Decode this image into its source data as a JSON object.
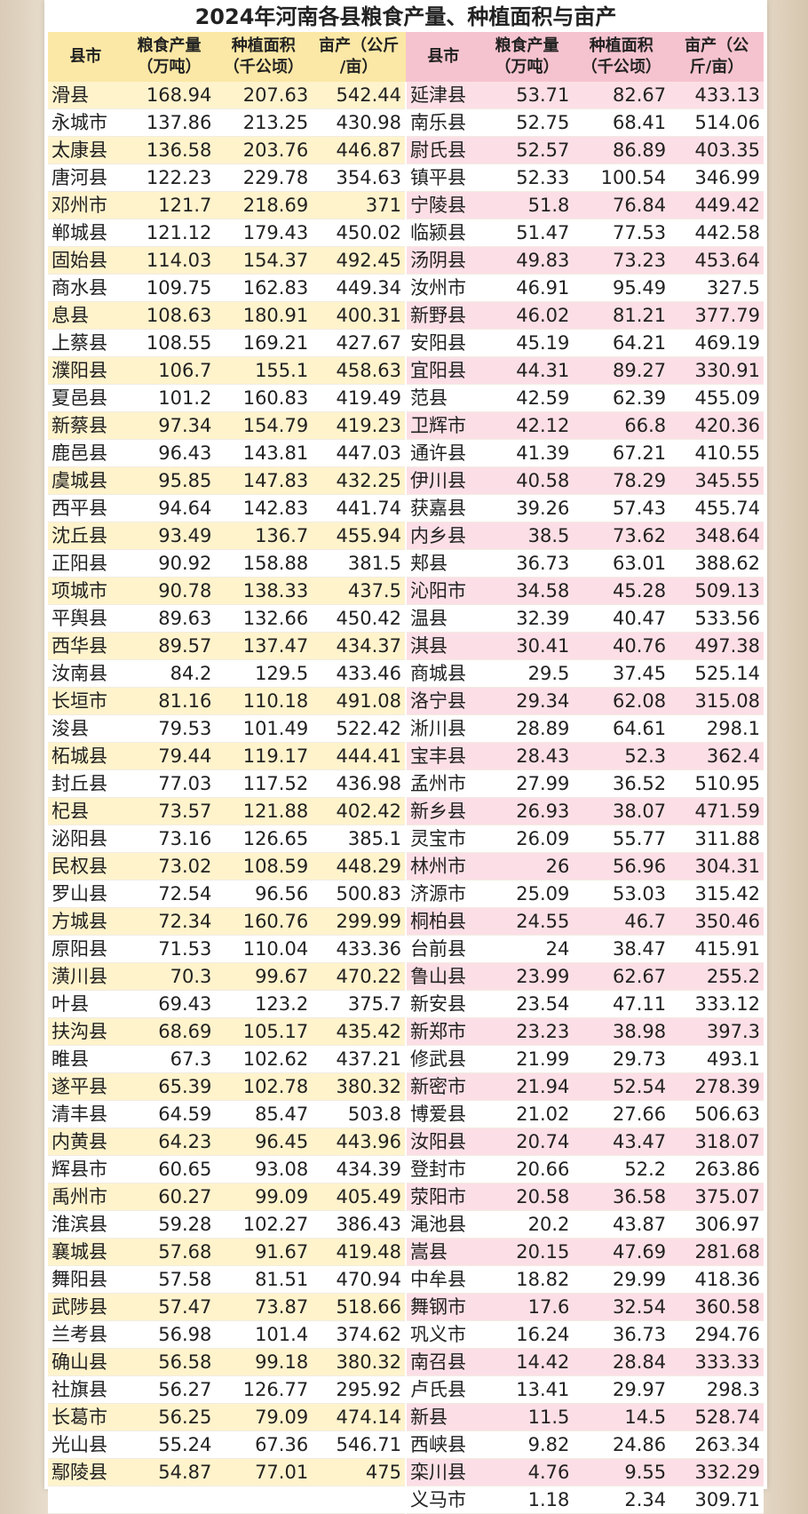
{
  "title": "2024年河南各县粮食产量、种植面积与亩产",
  "headers": {
    "county": "县市",
    "production_l1": "粮食产量",
    "production_l2": "（万吨）",
    "area_l1": "种植面积",
    "area_l2": "（千公顷）",
    "left_yield_l1": "亩产（公斤",
    "left_yield_l2": "/亩）",
    "right_yield_l1": "亩产（公",
    "right_yield_l2": "斤/亩）"
  },
  "rows": [
    {
      "l": [
        "滑县",
        "168.94",
        "207.63",
        "542.44"
      ],
      "r": [
        "延津县",
        "53.71",
        "82.67",
        "433.13"
      ]
    },
    {
      "l": [
        "永城市",
        "137.86",
        "213.25",
        "430.98"
      ],
      "r": [
        "南乐县",
        "52.75",
        "68.41",
        "514.06"
      ]
    },
    {
      "l": [
        "太康县",
        "136.58",
        "203.76",
        "446.87"
      ],
      "r": [
        "尉氏县",
        "52.57",
        "86.89",
        "403.35"
      ]
    },
    {
      "l": [
        "唐河县",
        "122.23",
        "229.78",
        "354.63"
      ],
      "r": [
        "镇平县",
        "52.33",
        "100.54",
        "346.99"
      ]
    },
    {
      "l": [
        "邓州市",
        "121.7",
        "218.69",
        "371"
      ],
      "r": [
        "宁陵县",
        "51.8",
        "76.84",
        "449.42"
      ]
    },
    {
      "l": [
        "郸城县",
        "121.12",
        "179.43",
        "450.02"
      ],
      "r": [
        "临颍县",
        "51.47",
        "77.53",
        "442.58"
      ]
    },
    {
      "l": [
        "固始县",
        "114.03",
        "154.37",
        "492.45"
      ],
      "r": [
        "汤阴县",
        "49.83",
        "73.23",
        "453.64"
      ]
    },
    {
      "l": [
        "商水县",
        "109.75",
        "162.83",
        "449.34"
      ],
      "r": [
        "汝州市",
        "46.91",
        "95.49",
        "327.5"
      ]
    },
    {
      "l": [
        "息县",
        "108.63",
        "180.91",
        "400.31"
      ],
      "r": [
        "新野县",
        "46.02",
        "81.21",
        "377.79"
      ]
    },
    {
      "l": [
        "上蔡县",
        "108.55",
        "169.21",
        "427.67"
      ],
      "r": [
        "安阳县",
        "45.19",
        "64.21",
        "469.19"
      ]
    },
    {
      "l": [
        "濮阳县",
        "106.7",
        "155.1",
        "458.63"
      ],
      "r": [
        "宜阳县",
        "44.31",
        "89.27",
        "330.91"
      ]
    },
    {
      "l": [
        "夏邑县",
        "101.2",
        "160.83",
        "419.49"
      ],
      "r": [
        "范县",
        "42.59",
        "62.39",
        "455.09"
      ]
    },
    {
      "l": [
        "新蔡县",
        "97.34",
        "154.79",
        "419.23"
      ],
      "r": [
        "卫辉市",
        "42.12",
        "66.8",
        "420.36"
      ]
    },
    {
      "l": [
        "鹿邑县",
        "96.43",
        "143.81",
        "447.03"
      ],
      "r": [
        "通许县",
        "41.39",
        "67.21",
        "410.55"
      ]
    },
    {
      "l": [
        "虞城县",
        "95.85",
        "147.83",
        "432.25"
      ],
      "r": [
        "伊川县",
        "40.58",
        "78.29",
        "345.55"
      ]
    },
    {
      "l": [
        "西平县",
        "94.64",
        "142.83",
        "441.74"
      ],
      "r": [
        "获嘉县",
        "39.26",
        "57.43",
        "455.74"
      ]
    },
    {
      "l": [
        "沈丘县",
        "93.49",
        "136.7",
        "455.94"
      ],
      "r": [
        "内乡县",
        "38.5",
        "73.62",
        "348.64"
      ]
    },
    {
      "l": [
        "正阳县",
        "90.92",
        "158.88",
        "381.5"
      ],
      "r": [
        "郏县",
        "36.73",
        "63.01",
        "388.62"
      ]
    },
    {
      "l": [
        "项城市",
        "90.78",
        "138.33",
        "437.5"
      ],
      "r": [
        "沁阳市",
        "34.58",
        "45.28",
        "509.13"
      ]
    },
    {
      "l": [
        "平舆县",
        "89.63",
        "132.66",
        "450.42"
      ],
      "r": [
        "温县",
        "32.39",
        "40.47",
        "533.56"
      ]
    },
    {
      "l": [
        "西华县",
        "89.57",
        "137.47",
        "434.37"
      ],
      "r": [
        "淇县",
        "30.41",
        "40.76",
        "497.38"
      ]
    },
    {
      "l": [
        "汝南县",
        "84.2",
        "129.5",
        "433.46"
      ],
      "r": [
        "商城县",
        "29.5",
        "37.45",
        "525.14"
      ]
    },
    {
      "l": [
        "长垣市",
        "81.16",
        "110.18",
        "491.08"
      ],
      "r": [
        "洛宁县",
        "29.34",
        "62.08",
        "315.08"
      ]
    },
    {
      "l": [
        "浚县",
        "79.53",
        "101.49",
        "522.42"
      ],
      "r": [
        "淅川县",
        "28.89",
        "64.61",
        "298.1"
      ]
    },
    {
      "l": [
        "柘城县",
        "79.44",
        "119.17",
        "444.41"
      ],
      "r": [
        "宝丰县",
        "28.43",
        "52.3",
        "362.4"
      ]
    },
    {
      "l": [
        "封丘县",
        "77.03",
        "117.52",
        "436.98"
      ],
      "r": [
        "孟州市",
        "27.99",
        "36.52",
        "510.95"
      ]
    },
    {
      "l": [
        "杞县",
        "73.57",
        "121.88",
        "402.42"
      ],
      "r": [
        "新乡县",
        "26.93",
        "38.07",
        "471.59"
      ]
    },
    {
      "l": [
        "泌阳县",
        "73.16",
        "126.65",
        "385.1"
      ],
      "r": [
        "灵宝市",
        "26.09",
        "55.77",
        "311.88"
      ]
    },
    {
      "l": [
        "民权县",
        "73.02",
        "108.59",
        "448.29"
      ],
      "r": [
        "林州市",
        "26",
        "56.96",
        "304.31"
      ]
    },
    {
      "l": [
        "罗山县",
        "72.54",
        "96.56",
        "500.83"
      ],
      "r": [
        "济源市",
        "25.09",
        "53.03",
        "315.42"
      ]
    },
    {
      "l": [
        "方城县",
        "72.34",
        "160.76",
        "299.99"
      ],
      "r": [
        "桐柏县",
        "24.55",
        "46.7",
        "350.46"
      ]
    },
    {
      "l": [
        "原阳县",
        "71.53",
        "110.04",
        "433.36"
      ],
      "r": [
        "台前县",
        "24",
        "38.47",
        "415.91"
      ]
    },
    {
      "l": [
        "潢川县",
        "70.3",
        "99.67",
        "470.22"
      ],
      "r": [
        "鲁山县",
        "23.99",
        "62.67",
        "255.2"
      ]
    },
    {
      "l": [
        "叶县",
        "69.43",
        "123.2",
        "375.7"
      ],
      "r": [
        "新安县",
        "23.54",
        "47.11",
        "333.12"
      ]
    },
    {
      "l": [
        "扶沟县",
        "68.69",
        "105.17",
        "435.42"
      ],
      "r": [
        "新郑市",
        "23.23",
        "38.98",
        "397.3"
      ]
    },
    {
      "l": [
        "睢县",
        "67.3",
        "102.62",
        "437.21"
      ],
      "r": [
        "修武县",
        "21.99",
        "29.73",
        "493.1"
      ]
    },
    {
      "l": [
        "遂平县",
        "65.39",
        "102.78",
        "380.32"
      ],
      "r": [
        "新密市",
        "21.94",
        "52.54",
        "278.39"
      ]
    },
    {
      "l": [
        "清丰县",
        "64.59",
        "85.47",
        "503.8"
      ],
      "r": [
        "博爱县",
        "21.02",
        "27.66",
        "506.63"
      ]
    },
    {
      "l": [
        "内黄县",
        "64.23",
        "96.45",
        "443.96"
      ],
      "r": [
        "汝阳县",
        "20.74",
        "43.47",
        "318.07"
      ]
    },
    {
      "l": [
        "辉县市",
        "60.65",
        "93.08",
        "434.39"
      ],
      "r": [
        "登封市",
        "20.66",
        "52.2",
        "263.86"
      ]
    },
    {
      "l": [
        "禹州市",
        "60.27",
        "99.09",
        "405.49"
      ],
      "r": [
        "荥阳市",
        "20.58",
        "36.58",
        "375.07"
      ]
    },
    {
      "l": [
        "淮滨县",
        "59.28",
        "102.27",
        "386.43"
      ],
      "r": [
        "渑池县",
        "20.2",
        "43.87",
        "306.97"
      ]
    },
    {
      "l": [
        "襄城县",
        "57.68",
        "91.67",
        "419.48"
      ],
      "r": [
        "嵩县",
        "20.15",
        "47.69",
        "281.68"
      ]
    },
    {
      "l": [
        "舞阳县",
        "57.58",
        "81.51",
        "470.94"
      ],
      "r": [
        "中牟县",
        "18.82",
        "29.99",
        "418.36"
      ]
    },
    {
      "l": [
        "武陟县",
        "57.47",
        "73.87",
        "518.66"
      ],
      "r": [
        "舞钢市",
        "17.6",
        "32.54",
        "360.58"
      ]
    },
    {
      "l": [
        "兰考县",
        "56.98",
        "101.4",
        "374.62"
      ],
      "r": [
        "巩义市",
        "16.24",
        "36.73",
        "294.76"
      ]
    },
    {
      "l": [
        "确山县",
        "56.58",
        "99.18",
        "380.32"
      ],
      "r": [
        "南召县",
        "14.42",
        "28.84",
        "333.33"
      ]
    },
    {
      "l": [
        "社旗县",
        "56.27",
        "126.77",
        "295.92"
      ],
      "r": [
        "卢氏县",
        "13.41",
        "29.97",
        "298.3"
      ]
    },
    {
      "l": [
        "长葛市",
        "56.25",
        "79.09",
        "474.14"
      ],
      "r": [
        "新县",
        "11.5",
        "14.5",
        "528.74"
      ]
    },
    {
      "l": [
        "光山县",
        "55.24",
        "67.36",
        "546.71"
      ],
      "r": [
        "西峡县",
        "9.82",
        "24.86",
        "263.34"
      ]
    },
    {
      "l": [
        "鄢陵县",
        "54.87",
        "77.01",
        "475"
      ],
      "r": [
        "栾川县",
        "4.76",
        "9.55",
        "332.29"
      ]
    },
    {
      "l": [
        "",
        "",
        "",
        ""
      ],
      "r": [
        "义马市",
        "1.18",
        "2.34",
        "309.71"
      ]
    }
  ]
}
